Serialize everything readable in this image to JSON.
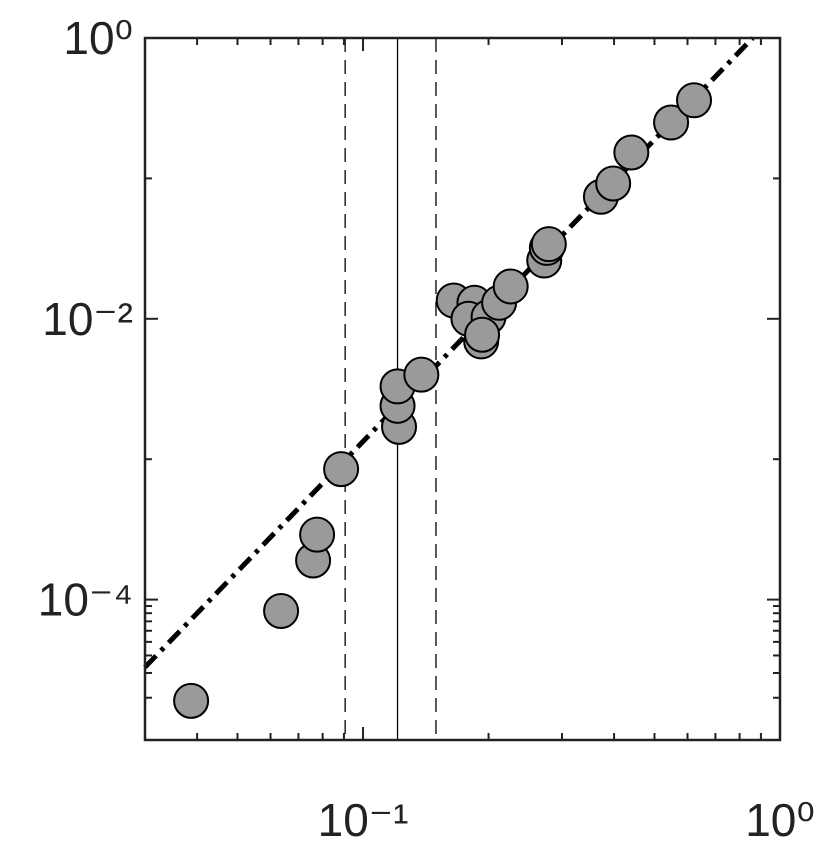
{
  "chart_data": {
    "type": "scatter",
    "x": [
      0.0387,
      0.0636,
      0.0759,
      0.0776,
      0.0886,
      0.122,
      0.121,
      0.121,
      0.138,
      0.165,
      0.185,
      0.179,
      0.2,
      0.192,
      0.193,
      0.212,
      0.226,
      0.272,
      0.276,
      0.279,
      0.372,
      0.398,
      0.44,
      0.548,
      0.622
    ],
    "series": [
      {
        "color": "#9a9a9a",
        "values": [
          1.9e-05,
          8.3e-05,
          0.00019,
          0.00029,
          0.00085,
          0.0017,
          0.0024,
          0.0033,
          0.004,
          0.0135,
          0.013,
          0.01,
          0.0103,
          0.0069,
          0.0077,
          0.013,
          0.017,
          0.026,
          0.032,
          0.034,
          0.074,
          0.092,
          0.153,
          0.25,
          0.36
        ]
      }
    ],
    "fit_line": {
      "x": [
        0.03,
        0.86
      ],
      "y": [
        3.3e-05,
        1
      ],
      "color": "#000000"
    },
    "vlines": [
      {
        "x": 0.0906,
        "style": "dashed"
      },
      {
        "x": 0.121,
        "style": "solid"
      },
      {
        "x": 0.1496,
        "style": "dashed"
      }
    ],
    "xscale": "log",
    "yscale": "log",
    "xlim": [
      0.03,
      1
    ],
    "ylim": [
      1e-05,
      1
    ],
    "xticks": [
      {
        "value": 0.1,
        "label": "10⁻¹"
      },
      {
        "value": 1,
        "label": "10⁰"
      }
    ],
    "yticks": [
      {
        "value": 0.0001,
        "label": "10⁻⁴"
      },
      {
        "value": 0.01,
        "label": "10⁻²"
      },
      {
        "value": 1,
        "label": "10⁰"
      }
    ],
    "xminorticks": [
      0.04,
      0.05,
      0.06,
      0.07,
      0.08,
      0.09,
      0.2,
      0.3,
      0.4,
      0.5,
      0.6,
      0.7,
      0.8,
      0.9
    ],
    "yminorticks": [
      2e-05,
      3e-05,
      4e-05,
      5e-05,
      6e-05,
      7e-05,
      8e-05,
      9e-05,
      0.001,
      0.1
    ]
  }
}
